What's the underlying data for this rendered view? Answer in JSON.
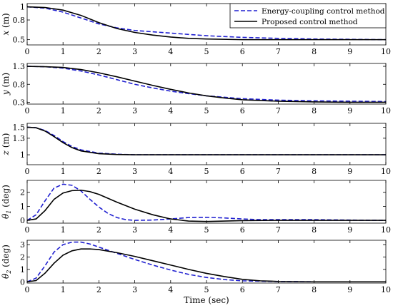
{
  "chart_data": [
    {
      "type": "line",
      "ylabel": "x (m)",
      "xlim": [
        0,
        10
      ],
      "ylim": [
        0.42,
        1.05
      ],
      "xticks": [
        0,
        1,
        2,
        3,
        4,
        5,
        6,
        7,
        8,
        9,
        10
      ],
      "yticks": [
        0.5,
        0.8,
        1
      ],
      "xlabel": "",
      "legend": {
        "placement": "top-right",
        "entries": [
          "Energy-coupling control method",
          "Proposed control method"
        ]
      },
      "series": [
        {
          "name": "Energy-coupling control method",
          "color": "#1f1fd0",
          "style": "dashed",
          "x": [
            0,
            0.5,
            1,
            1.5,
            2,
            2.5,
            3,
            3.5,
            4,
            4.5,
            5,
            6,
            7,
            8,
            9,
            10
          ],
          "y": [
            1.0,
            0.98,
            0.92,
            0.83,
            0.74,
            0.68,
            0.64,
            0.62,
            0.6,
            0.58,
            0.56,
            0.535,
            0.52,
            0.51,
            0.505,
            0.5
          ]
        },
        {
          "name": "Proposed control method",
          "color": "#000000",
          "style": "solid",
          "x": [
            0,
            0.5,
            1,
            1.5,
            2,
            2.5,
            3,
            3.5,
            4,
            4.5,
            5,
            6,
            7,
            8,
            9,
            10
          ],
          "y": [
            1.0,
            0.99,
            0.95,
            0.87,
            0.76,
            0.67,
            0.61,
            0.57,
            0.54,
            0.52,
            0.51,
            0.5,
            0.5,
            0.5,
            0.5,
            0.5
          ]
        }
      ]
    },
    {
      "type": "line",
      "ylabel": "y (m)",
      "xlim": [
        0,
        10
      ],
      "ylim": [
        0.25,
        1.38
      ],
      "xticks": [
        0,
        1,
        2,
        3,
        4,
        5,
        6,
        7,
        8,
        9,
        10
      ],
      "yticks": [
        0.3,
        0.8,
        1.3
      ],
      "xlabel": "",
      "series": [
        {
          "name": "Energy-coupling control method",
          "color": "#1f1fd0",
          "style": "dashed",
          "x": [
            0,
            0.5,
            1,
            1.5,
            2,
            2.5,
            3,
            3.5,
            4,
            4.5,
            5,
            5.5,
            6,
            7,
            8,
            9,
            10
          ],
          "y": [
            1.3,
            1.29,
            1.25,
            1.17,
            1.06,
            0.93,
            0.8,
            0.7,
            0.61,
            0.54,
            0.48,
            0.44,
            0.4,
            0.36,
            0.34,
            0.33,
            0.32
          ]
        },
        {
          "name": "Proposed control method",
          "color": "#000000",
          "style": "solid",
          "x": [
            0,
            0.5,
            1,
            1.5,
            2,
            2.5,
            3,
            3.5,
            4,
            4.5,
            5,
            5.5,
            6,
            7,
            8,
            9,
            10
          ],
          "y": [
            1.3,
            1.29,
            1.27,
            1.21,
            1.12,
            1.01,
            0.89,
            0.77,
            0.66,
            0.56,
            0.48,
            0.42,
            0.37,
            0.33,
            0.31,
            0.3,
            0.3
          ]
        }
      ]
    },
    {
      "type": "line",
      "ylabel": "z (m)",
      "xlim": [
        0,
        10
      ],
      "ylim": [
        0.82,
        1.57
      ],
      "xticks": [
        0,
        1,
        2,
        3,
        4,
        5,
        6,
        7,
        8,
        9,
        10
      ],
      "yticks": [
        1,
        1.3,
        1.5
      ],
      "xlabel": "",
      "series": [
        {
          "name": "Energy-coupling control method",
          "color": "#1f1fd0",
          "style": "dashed",
          "x": [
            0,
            0.25,
            0.5,
            0.75,
            1,
            1.25,
            1.5,
            2,
            2.5,
            3,
            3.5,
            4,
            5,
            6,
            7,
            8,
            9,
            10
          ],
          "y": [
            1.5,
            1.49,
            1.44,
            1.35,
            1.24,
            1.15,
            1.09,
            1.03,
            1.01,
            1.0,
            1.0,
            1.0,
            1.0,
            1.0,
            1.0,
            1.0,
            1.0,
            1.0
          ]
        },
        {
          "name": "Proposed control method",
          "color": "#000000",
          "style": "solid",
          "x": [
            0,
            0.25,
            0.5,
            0.75,
            1,
            1.25,
            1.5,
            2,
            2.5,
            3,
            3.5,
            4,
            5,
            6,
            7,
            8,
            9,
            10
          ],
          "y": [
            1.5,
            1.49,
            1.43,
            1.33,
            1.22,
            1.13,
            1.07,
            1.02,
            1.005,
            1.0,
            1.0,
            1.0,
            1.0,
            1.0,
            1.0,
            1.0,
            1.0,
            1.0
          ]
        }
      ]
    },
    {
      "type": "line",
      "ylabel": "θ1 (deg)",
      "xlim": [
        0,
        10
      ],
      "ylim": [
        -0.2,
        2.85
      ],
      "xticks": [
        0,
        1,
        2,
        3,
        4,
        5,
        6,
        7,
        8,
        9,
        10
      ],
      "yticks": [
        0,
        1,
        2
      ],
      "xlabel": "",
      "series": [
        {
          "name": "Energy-coupling control method",
          "color": "#1f1fd0",
          "style": "dashed",
          "x": [
            0,
            0.25,
            0.5,
            0.75,
            1,
            1.25,
            1.5,
            1.75,
            2,
            2.25,
            2.5,
            2.75,
            3,
            3.5,
            4,
            4.5,
            5,
            5.5,
            6,
            6.5,
            7,
            8,
            9,
            10
          ],
          "y": [
            0,
            0.4,
            1.4,
            2.3,
            2.58,
            2.5,
            2.1,
            1.5,
            0.95,
            0.5,
            0.2,
            0.05,
            0.0,
            0.02,
            0.1,
            0.2,
            0.22,
            0.17,
            0.1,
            0.05,
            0.05,
            0.05,
            0.02,
            0.0
          ]
        },
        {
          "name": "Proposed control method",
          "color": "#000000",
          "style": "solid",
          "x": [
            0,
            0.25,
            0.5,
            0.75,
            1,
            1.25,
            1.5,
            1.75,
            2,
            2.5,
            3,
            3.5,
            4,
            4.5,
            5,
            5.5,
            6,
            7,
            8,
            9,
            10
          ],
          "y": [
            0,
            0.1,
            0.7,
            1.5,
            1.95,
            2.12,
            2.15,
            2.05,
            1.85,
            1.3,
            0.8,
            0.4,
            0.1,
            -0.05,
            -0.08,
            -0.05,
            -0.02,
            0.0,
            0.0,
            0.0,
            0.0
          ]
        }
      ]
    },
    {
      "type": "line",
      "ylabel": "θ2 (deg)",
      "xlim": [
        0,
        10
      ],
      "ylim": [
        -0.1,
        3.35
      ],
      "xticks": [
        0,
        1,
        2,
        3,
        4,
        5,
        6,
        7,
        8,
        9,
        10
      ],
      "yticks": [
        0,
        1,
        2,
        3
      ],
      "xlabel": "Time (sec)",
      "series": [
        {
          "name": "Energy-coupling control method",
          "color": "#1f1fd0",
          "style": "dashed",
          "x": [
            0,
            0.25,
            0.5,
            0.75,
            1,
            1.25,
            1.5,
            1.75,
            2,
            2.5,
            3,
            3.5,
            4,
            4.5,
            5,
            5.5,
            6,
            7,
            8,
            9,
            10
          ],
          "y": [
            0,
            0.3,
            1.3,
            2.4,
            3.0,
            3.2,
            3.2,
            3.05,
            2.8,
            2.3,
            1.8,
            1.35,
            0.95,
            0.6,
            0.35,
            0.18,
            0.08,
            0.02,
            0.0,
            0.0,
            0.0
          ]
        },
        {
          "name": "Proposed control method",
          "color": "#000000",
          "style": "solid",
          "x": [
            0,
            0.25,
            0.5,
            0.75,
            1,
            1.25,
            1.5,
            1.75,
            2,
            2.5,
            3,
            3.5,
            4,
            4.5,
            5,
            5.5,
            6,
            6.5,
            7,
            8,
            9,
            10
          ],
          "y": [
            0,
            0.1,
            0.7,
            1.5,
            2.15,
            2.5,
            2.65,
            2.65,
            2.6,
            2.35,
            2.05,
            1.7,
            1.35,
            1.0,
            0.68,
            0.42,
            0.2,
            0.08,
            0.03,
            0.0,
            0.0,
            0.0
          ]
        }
      ]
    }
  ]
}
